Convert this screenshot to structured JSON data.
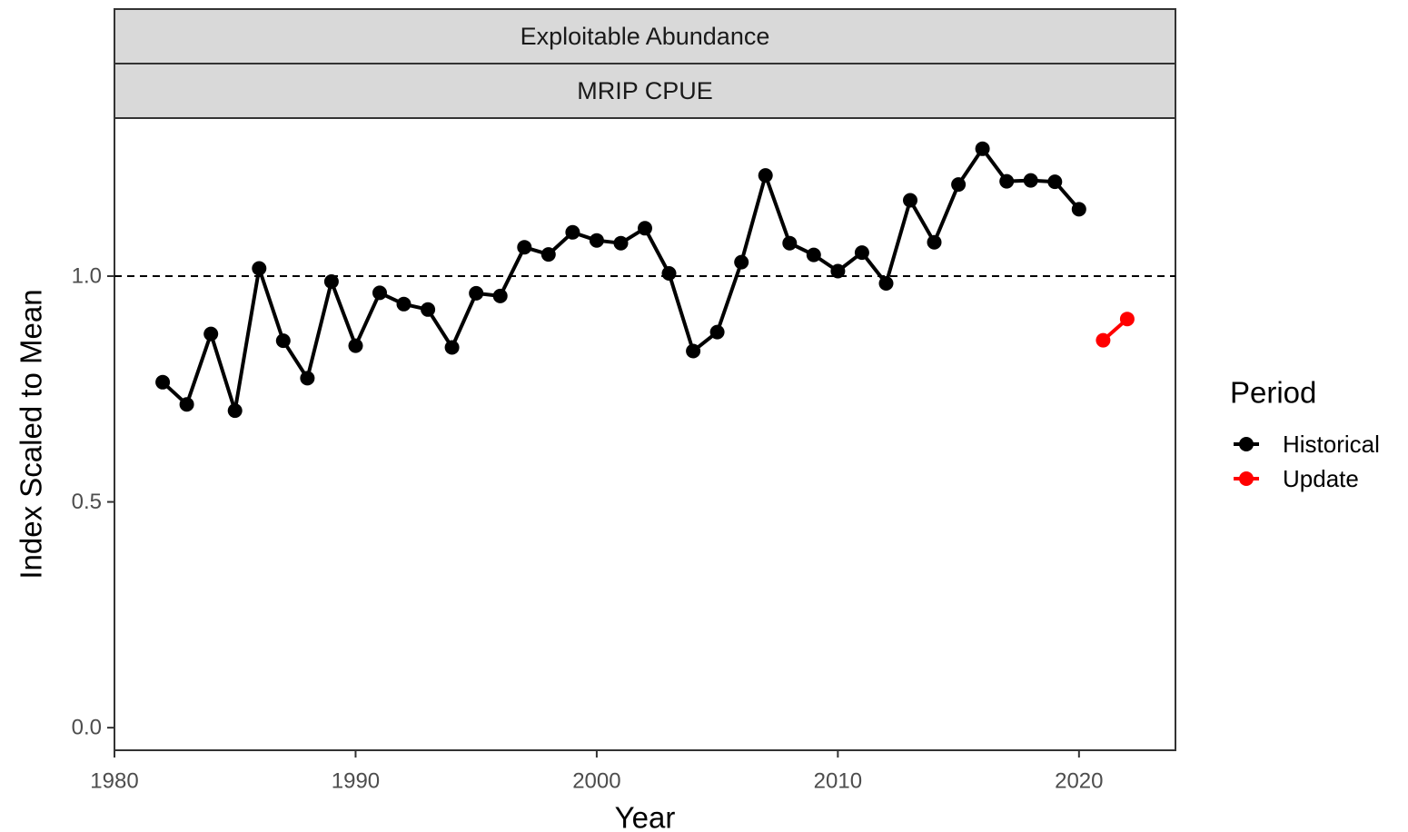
{
  "chart_data": {
    "type": "line",
    "facet_strips": [
      "Exploitable Abundance",
      "MRIP CPUE"
    ],
    "xlabel": "Year",
    "ylabel": "Index Scaled to Mean",
    "xlim": [
      1980,
      2024
    ],
    "ylim": [
      -0.05,
      1.35
    ],
    "x_ticks": [
      1980,
      1990,
      2000,
      2010,
      2020
    ],
    "y_ticks": [
      0.0,
      0.5,
      1.0
    ],
    "y_tick_labels": [
      "0.0",
      "0.5",
      "1.0"
    ],
    "reference_line": {
      "y": 1.0,
      "style": "dashed"
    },
    "legend": {
      "title": "Period",
      "placement": "right"
    },
    "series": [
      {
        "name": "Historical",
        "color": "#000000",
        "x": [
          1982,
          1983,
          1984,
          1985,
          1986,
          1987,
          1988,
          1989,
          1990,
          1991,
          1992,
          1993,
          1994,
          1995,
          1996,
          1997,
          1998,
          1999,
          2000,
          2001,
          2002,
          2003,
          2004,
          2005,
          2006,
          2007,
          2008,
          2009,
          2010,
          2011,
          2012,
          2013,
          2014,
          2015,
          2016,
          2017,
          2018,
          2019,
          2020
        ],
        "y": [
          0.765,
          0.716,
          0.872,
          0.702,
          1.017,
          0.857,
          0.774,
          0.988,
          0.846,
          0.963,
          0.938,
          0.926,
          0.842,
          0.962,
          0.956,
          1.064,
          1.048,
          1.097,
          1.079,
          1.073,
          1.106,
          1.006,
          0.834,
          0.876,
          1.031,
          1.223,
          1.073,
          1.047,
          1.011,
          1.052,
          0.984,
          1.168,
          1.075,
          1.203,
          1.282,
          1.21,
          1.212,
          1.209,
          1.148
        ]
      },
      {
        "name": "Update",
        "color": "#ff0000",
        "x": [
          2021,
          2022
        ],
        "y": [
          0.858,
          0.905
        ]
      }
    ]
  }
}
